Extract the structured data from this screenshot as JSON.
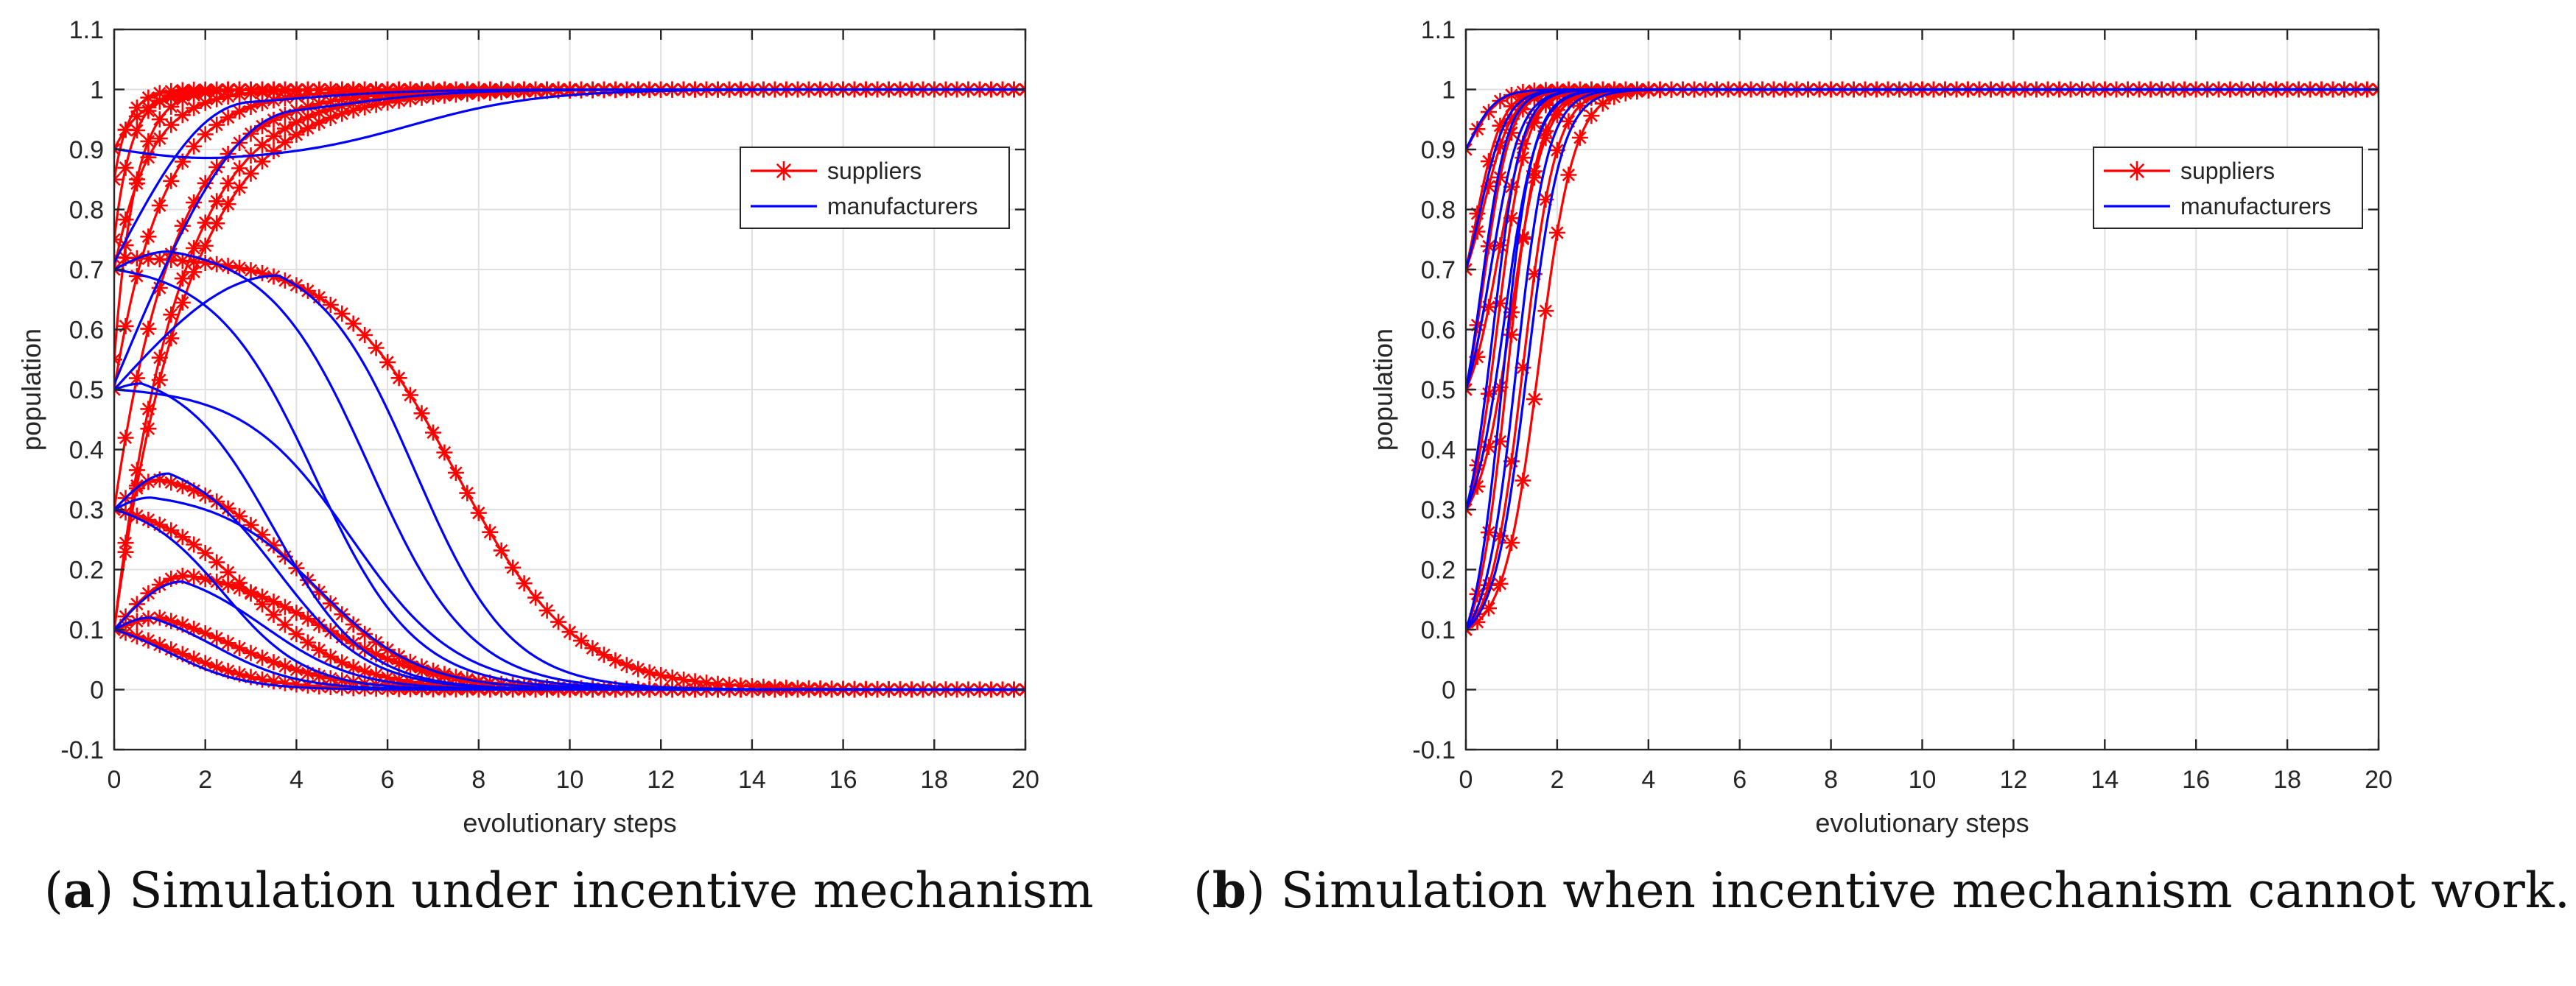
{
  "figure": {
    "panels": [
      {
        "letter": "a",
        "caption_text": " Simulation under incentive mechanism",
        "chart_data": {
          "type": "line",
          "title": "",
          "xlabel": "evolutionary steps",
          "ylabel": "population",
          "xlim": [
            0,
            20
          ],
          "ylim": [
            -0.1,
            1.1
          ],
          "xticks": [
            0,
            2,
            4,
            6,
            8,
            10,
            12,
            14,
            16,
            18,
            20
          ],
          "yticks": [
            -0.1,
            0,
            0.1,
            0.2,
            0.3,
            0.4,
            0.5,
            0.6,
            0.7,
            0.8,
            0.9,
            1,
            1.1
          ],
          "grid": true,
          "legend": {
            "position": "top-right",
            "entries": [
              {
                "label": "suppliers",
                "color": "#ff0000",
                "marker": "star"
              },
              {
                "label": "manufacturers",
                "color": "#0000ff",
                "marker": "none"
              }
            ]
          },
          "series": [
            {
              "name": "suppliers",
              "color": "#ff0000",
              "marker": "star",
              "curves": [
                {
                  "start": 0.1,
                  "peak": 0.1,
                  "end": 1,
                  "t_peak": 0,
                  "rate": 0.62
                },
                {
                  "start": 0.1,
                  "peak": 0.1,
                  "end": 1,
                  "t_peak": 0,
                  "rate": 0.7
                },
                {
                  "start": 0.3,
                  "peak": 0.3,
                  "end": 1,
                  "t_peak": 0,
                  "rate": 0.75
                },
                {
                  "start": 0.5,
                  "peak": 0.5,
                  "end": 1,
                  "t_peak": 0,
                  "rate": 0.95
                },
                {
                  "start": 0.7,
                  "peak": 0.7,
                  "end": 1,
                  "t_peak": 0,
                  "rate": 1.3
                },
                {
                  "start": 0.9,
                  "peak": 0.9,
                  "end": 1,
                  "t_peak": 0,
                  "rate": 1.6
                },
                {
                  "start": 0.55,
                  "peak": 0.55,
                  "end": 1,
                  "t_peak": 0,
                  "rate": 2.2
                },
                {
                  "start": 0.75,
                  "peak": 0.75,
                  "end": 1,
                  "t_peak": 0,
                  "rate": 2.6
                },
                {
                  "start": 0.85,
                  "peak": 0.85,
                  "end": 1,
                  "t_peak": 0,
                  "rate": 3.2
                },
                {
                  "start": 0.72,
                  "peak": 0.72,
                  "end": 0,
                  "t_peak": 0,
                  "rate": 0.1,
                  "mid": 7.5,
                  "k": 0.75
                },
                {
                  "start": 0.3,
                  "peak": 0.35,
                  "end": 0,
                  "t_peak": 1,
                  "rate": 0.1,
                  "mid": 4.2,
                  "k": 0.85
                },
                {
                  "start": 0.3,
                  "peak": 0.3,
                  "end": 0,
                  "t_peak": 0,
                  "rate": 0.1,
                  "mid": 3.0,
                  "k": 0.9
                },
                {
                  "start": 0.1,
                  "peak": 0.19,
                  "end": 0,
                  "t_peak": 1.6,
                  "rate": 0.1,
                  "mid": 4.6,
                  "k": 0.8
                },
                {
                  "start": 0.1,
                  "peak": 0.12,
                  "end": 0,
                  "t_peak": 1,
                  "rate": 0.1,
                  "mid": 2.6,
                  "k": 0.9
                },
                {
                  "start": 0.1,
                  "peak": 0.1,
                  "end": 0,
                  "t_peak": 0,
                  "rate": 0.1,
                  "mid": 1.4,
                  "k": 1.0
                }
              ]
            },
            {
              "name": "manufacturers",
              "color": "#0000ff",
              "marker": "none",
              "curves": [
                {
                  "start": 0.9,
                  "peak": 0.88,
                  "end": 1,
                  "t_peak": 2.5,
                  "rate": 0.1,
                  "mid": 6.5,
                  "k": 0.7
                },
                {
                  "start": 0.7,
                  "peak": 0.97,
                  "end": 1,
                  "t_peak": 3,
                  "rate": 0.1,
                  "mid": 4,
                  "k": 0.8
                },
                {
                  "start": 0.5,
                  "peak": 0.95,
                  "end": 1,
                  "t_peak": 4,
                  "rate": 0.1,
                  "mid": 5,
                  "k": 0.8
                },
                {
                  "start": 0.5,
                  "peak": 0.69,
                  "end": 0,
                  "t_peak": 3.6,
                  "rate": 0.1,
                  "mid": 6.6,
                  "k": 0.95
                },
                {
                  "start": 0.7,
                  "peak": 0.73,
                  "end": 0,
                  "t_peak": 1.2,
                  "rate": 0.1,
                  "mid": 5.6,
                  "k": 0.9
                },
                {
                  "start": 0.7,
                  "peak": 0.7,
                  "end": 0,
                  "t_peak": 0,
                  "rate": 0.1,
                  "mid": 4.4,
                  "k": 0.9
                },
                {
                  "start": 0.5,
                  "peak": 0.51,
                  "end": 0,
                  "t_peak": 0.6,
                  "rate": 0.1,
                  "mid": 3.5,
                  "k": 1.0
                },
                {
                  "start": 0.3,
                  "peak": 0.36,
                  "end": 0,
                  "t_peak": 1.2,
                  "rate": 0.1,
                  "mid": 3.6,
                  "k": 1.0
                },
                {
                  "start": 0.3,
                  "peak": 0.3,
                  "end": 0,
                  "t_peak": 0,
                  "rate": 0.1,
                  "mid": 2.4,
                  "k": 1.1
                },
                {
                  "start": 0.1,
                  "peak": 0.18,
                  "end": 0,
                  "t_peak": 1.5,
                  "rate": 0.1,
                  "mid": 3.3,
                  "k": 1.0
                },
                {
                  "start": 0.1,
                  "peak": 0.12,
                  "end": 0,
                  "t_peak": 0.8,
                  "rate": 0.1,
                  "mid": 2.2,
                  "k": 1.1
                },
                {
                  "start": 0.1,
                  "peak": 0.1,
                  "end": 0,
                  "t_peak": 0,
                  "rate": 0.1,
                  "mid": 1.2,
                  "k": 1.2
                },
                {
                  "start": 0.5,
                  "peak": 0.5,
                  "end": 0,
                  "t_peak": 0,
                  "rate": 0.1,
                  "mid": 5.2,
                  "k": 0.85
                },
                {
                  "start": 0.3,
                  "peak": 0.32,
                  "end": 0,
                  "t_peak": 0.8,
                  "rate": 0.1,
                  "mid": 4.5,
                  "k": 0.9
                }
              ]
            }
          ]
        }
      },
      {
        "letter": "b",
        "caption_text": " Simulation when incentive mechanism cannot work.",
        "chart_data": {
          "type": "line",
          "title": "",
          "xlabel": "evolutionary steps",
          "ylabel": "population",
          "xlim": [
            0,
            20
          ],
          "ylim": [
            -0.1,
            1.1
          ],
          "xticks": [
            0,
            2,
            4,
            6,
            8,
            10,
            12,
            14,
            16,
            18,
            20
          ],
          "yticks": [
            -0.1,
            0,
            0.1,
            0.2,
            0.3,
            0.4,
            0.5,
            0.6,
            0.7,
            0.8,
            0.9,
            1,
            1.1
          ],
          "grid": true,
          "legend": {
            "position": "top-right",
            "entries": [
              {
                "label": "suppliers",
                "color": "#ff0000",
                "marker": "star"
              },
              {
                "label": "manufacturers",
                "color": "#0000ff",
                "marker": "none"
              }
            ]
          },
          "series": [
            {
              "name": "suppliers",
              "color": "#ff0000",
              "marker": "star",
              "curves": [
                {
                  "start": 0.1,
                  "end": 1,
                  "mid": 1.6,
                  "k": 2.6
                },
                {
                  "start": 0.1,
                  "end": 1,
                  "mid": 1.25,
                  "k": 2.8
                },
                {
                  "start": 0.3,
                  "end": 1,
                  "mid": 1.0,
                  "k": 2.8
                },
                {
                  "start": 0.5,
                  "end": 1,
                  "mid": 0.7,
                  "k": 3.0
                },
                {
                  "start": 0.7,
                  "end": 1,
                  "mid": 0.4,
                  "k": 3.2
                },
                {
                  "start": 0.9,
                  "end": 1,
                  "mid": 0.1,
                  "k": 3.2
                },
                {
                  "start": 0.3,
                  "end": 1,
                  "mid": 0.7,
                  "k": 3.2
                },
                {
                  "start": 0.5,
                  "end": 1,
                  "mid": 0.4,
                  "k": 3.4
                },
                {
                  "start": 0.7,
                  "end": 1,
                  "mid": 0.2,
                  "k": 3.4
                },
                {
                  "start": 0.1,
                  "end": 1,
                  "mid": 0.9,
                  "k": 3.0
                }
              ]
            },
            {
              "name": "manufacturers",
              "color": "#0000ff",
              "marker": "none",
              "curves": [
                {
                  "start": 0.1,
                  "end": 1,
                  "mid": 1.35,
                  "k": 2.7
                },
                {
                  "start": 0.1,
                  "end": 1,
                  "mid": 1.1,
                  "k": 2.9
                },
                {
                  "start": 0.3,
                  "end": 1,
                  "mid": 0.85,
                  "k": 2.9
                },
                {
                  "start": 0.5,
                  "end": 1,
                  "mid": 0.55,
                  "k": 3.1
                },
                {
                  "start": 0.7,
                  "end": 1,
                  "mid": 0.3,
                  "k": 3.3
                },
                {
                  "start": 0.9,
                  "end": 1,
                  "mid": 0.05,
                  "k": 3.3
                },
                {
                  "start": 0.3,
                  "end": 1,
                  "mid": 0.6,
                  "k": 3.3
                },
                {
                  "start": 0.5,
                  "end": 1,
                  "mid": 0.35,
                  "k": 3.5
                },
                {
                  "start": 0.1,
                  "end": 1,
                  "mid": 0.8,
                  "k": 3.1
                }
              ]
            }
          ]
        }
      }
    ]
  }
}
